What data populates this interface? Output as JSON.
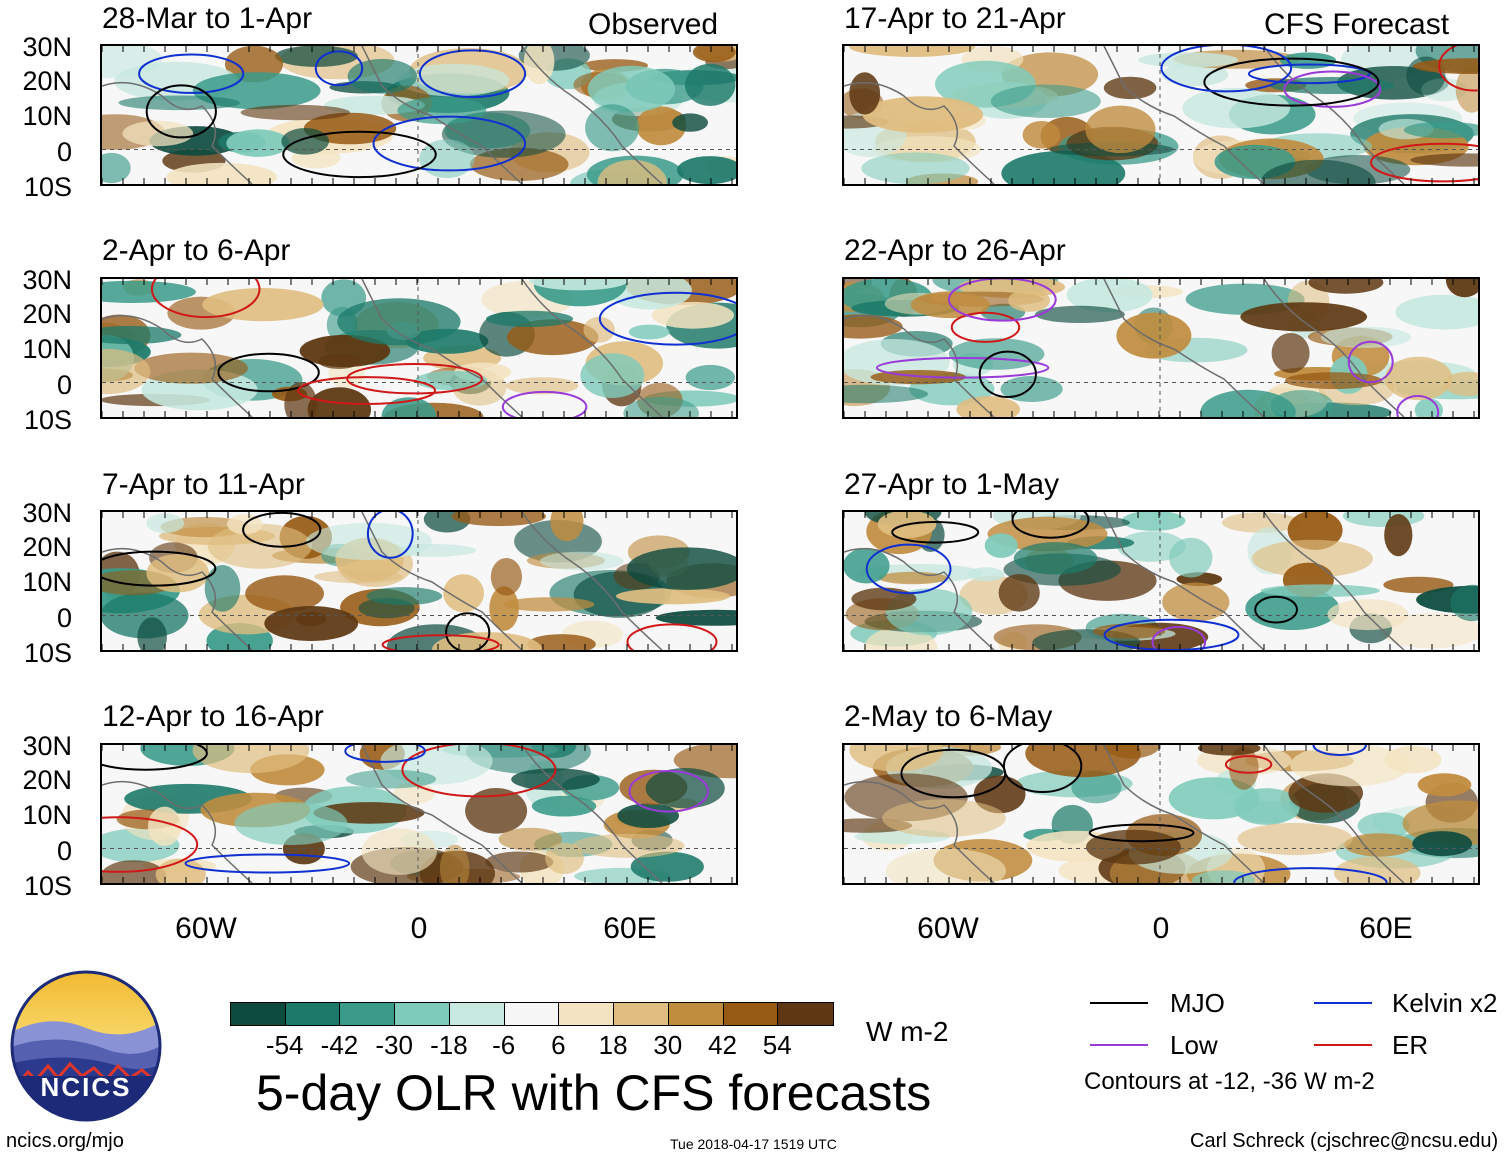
{
  "title": "5-day OLR with CFS forecasts",
  "columns": {
    "left_label": "Observed",
    "right_label": "CFS Forecast"
  },
  "panels": {
    "left": [
      "28-Mar to 1-Apr",
      "2-Apr to 6-Apr",
      "7-Apr to 11-Apr",
      "12-Apr to 16-Apr"
    ],
    "right": [
      "17-Apr to 21-Apr",
      "22-Apr to 26-Apr",
      "27-Apr to 1-May",
      "2-May to 6-May"
    ]
  },
  "axes": {
    "lat_labels": [
      "30N",
      "20N",
      "10N",
      "0",
      "10S"
    ],
    "lon_labels": [
      "60W",
      "0",
      "60E"
    ]
  },
  "colorbar": {
    "unit": "W m-2",
    "ticks": [
      "-54",
      "-42",
      "-30",
      "-18",
      "-6",
      "6",
      "18",
      "30",
      "42",
      "54"
    ],
    "colors": [
      "#0d4b3f",
      "#1d7a6a",
      "#3a9b8a",
      "#7fcbbb",
      "#c6e8df",
      "#f7f7f7",
      "#f3e3c0",
      "#dfbd80",
      "#c08c3e",
      "#975a14",
      "#5e3812"
    ]
  },
  "legend": {
    "items": [
      {
        "label": "MJO",
        "color": "#000000"
      },
      {
        "label": "Kelvin x2",
        "color": "#1030d0"
      },
      {
        "label": "Low",
        "color": "#9a3ad8"
      },
      {
        "label": "ER",
        "color": "#d01818"
      }
    ],
    "note": "Contours at -12, -36 W m-2"
  },
  "footer": {
    "left": "ncics.org/mjo",
    "center": "Tue 2018-04-17 1519 UTC",
    "right": "Carl Schreck (cjschrec@ncsu.edu)"
  },
  "logo": {
    "text": "NCICS"
  },
  "chart_data": {
    "type": "heatmap",
    "title": "5-day OLR with CFS forecasts",
    "variable": "OLR anomaly",
    "unit": "W m-2",
    "color_levels": [
      -54,
      -42,
      -30,
      -18,
      -6,
      6,
      18,
      30,
      42,
      54
    ],
    "lat_range": [
      -10,
      30
    ],
    "lat_ticks": [
      "30N",
      "20N",
      "10N",
      "0",
      "10S"
    ],
    "lon_ticks": [
      "60W",
      "0",
      "60E"
    ],
    "contours": "Contours at -12, -36 W m-2",
    "contour_series": [
      "MJO",
      "Kelvin x2",
      "Low",
      "ER"
    ],
    "observed_periods": [
      "28-Mar to 1-Apr",
      "2-Apr to 6-Apr",
      "7-Apr to 11-Apr",
      "12-Apr to 16-Apr"
    ],
    "forecast_periods": [
      "17-Apr to 21-Apr",
      "22-Apr to 26-Apr",
      "27-Apr to 1-May",
      "2-May to 6-May"
    ]
  }
}
